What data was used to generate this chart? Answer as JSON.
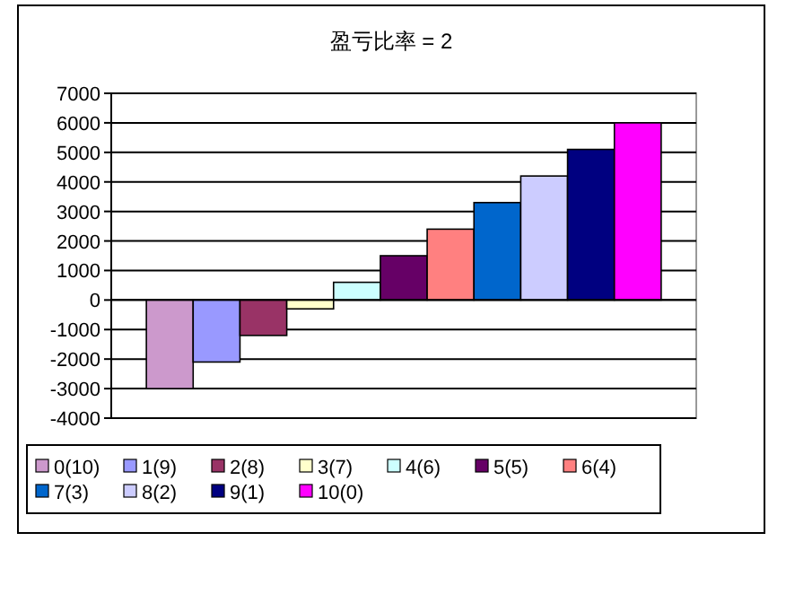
{
  "chart_data": {
    "type": "bar",
    "title": "盈亏比率 = 2",
    "categories": [
      null
    ],
    "series": [
      {
        "name": "0(10)",
        "color": "#cc99cc",
        "values": [
          -3000
        ]
      },
      {
        "name": "1(9)",
        "color": "#9999ff",
        "values": [
          -2100
        ]
      },
      {
        "name": "2(8)",
        "color": "#993366",
        "values": [
          -1200
        ]
      },
      {
        "name": "3(7)",
        "color": "#ffffcc",
        "values": [
          -300
        ]
      },
      {
        "name": "4(6)",
        "color": "#ccffff",
        "values": [
          600
        ]
      },
      {
        "name": "5(5)",
        "color": "#660066",
        "values": [
          1500
        ]
      },
      {
        "name": "6(4)",
        "color": "#ff8080",
        "values": [
          2400
        ]
      },
      {
        "name": "7(3)",
        "color": "#0066cc",
        "values": [
          3300
        ]
      },
      {
        "name": "8(2)",
        "color": "#ccccff",
        "values": [
          4200
        ]
      },
      {
        "name": "9(1)",
        "color": "#000080",
        "values": [
          5100
        ]
      },
      {
        "name": "10(0)",
        "color": "#ff00ff",
        "values": [
          6000
        ]
      }
    ],
    "ylim": [
      -4000,
      7000
    ],
    "yticks": [
      -4000,
      -3000,
      -2000,
      -1000,
      0,
      1000,
      2000,
      3000,
      4000,
      5000,
      6000,
      7000
    ],
    "grid": "y",
    "legend": "bottom"
  }
}
